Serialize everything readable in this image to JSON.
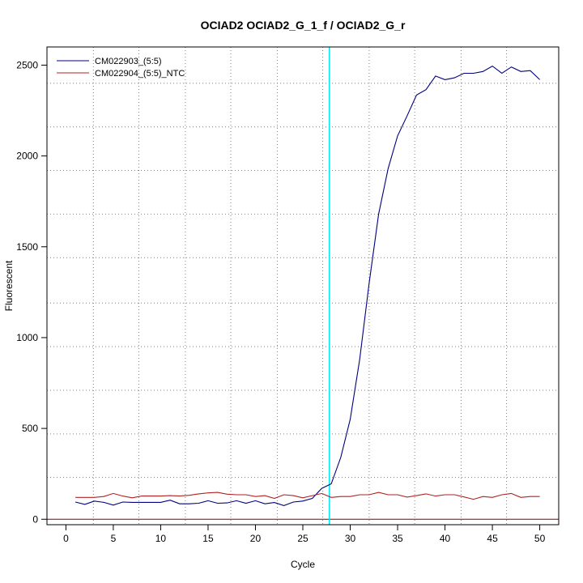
{
  "chart_data": {
    "type": "line",
    "title": "OCIAD2  OCIAD2_G_1_f / OCIAD2_G_r",
    "xlabel": "Cycle",
    "ylabel": "Fluorescent",
    "xlim": [
      -2,
      52
    ],
    "ylim": [
      -30,
      2600
    ],
    "x_ticks": [
      0,
      5,
      10,
      15,
      20,
      25,
      30,
      35,
      40,
      45,
      50
    ],
    "y_ticks": [
      0,
      500,
      1000,
      1500,
      2000,
      2500
    ],
    "grid": true,
    "legend_position": "top-left",
    "threshold_cycle": 27.8,
    "threshold_color": "#00e5ee",
    "baseline_color": "#8b0000",
    "x": [
      1,
      2,
      3,
      4,
      5,
      6,
      7,
      8,
      9,
      10,
      11,
      12,
      13,
      14,
      15,
      16,
      17,
      18,
      19,
      20,
      21,
      22,
      23,
      24,
      25,
      26,
      27,
      28,
      29,
      30,
      31,
      32,
      33,
      34,
      35,
      36,
      37,
      38,
      39,
      40,
      41,
      42,
      43,
      44,
      45,
      46,
      47,
      48,
      49,
      50
    ],
    "series": [
      {
        "name": "CM022903_(5:5)",
        "color": "#000080",
        "values": [
          95,
          82,
          100,
          93,
          78,
          95,
          93,
          93,
          93,
          93,
          105,
          85,
          85,
          88,
          102,
          88,
          90,
          102,
          88,
          102,
          85,
          92,
          75,
          95,
          100,
          115,
          170,
          195,
          340,
          550,
          880,
          1300,
          1680,
          1930,
          2110,
          2220,
          2335,
          2365,
          2440,
          2420,
          2430,
          2455,
          2455,
          2465,
          2495,
          2455,
          2490,
          2465,
          2470,
          2420
        ]
      },
      {
        "name": "CM022904_(5:5)_NTC",
        "color": "#b22222",
        "values": [
          120,
          120,
          120,
          125,
          142,
          128,
          118,
          128,
          128,
          128,
          130,
          128,
          132,
          140,
          145,
          148,
          138,
          135,
          135,
          125,
          130,
          115,
          135,
          130,
          118,
          130,
          142,
          120,
          125,
          125,
          135,
          135,
          148,
          135,
          135,
          122,
          130,
          140,
          128,
          135,
          135,
          123,
          110,
          125,
          120,
          135,
          142,
          120,
          125,
          125
        ]
      }
    ]
  }
}
